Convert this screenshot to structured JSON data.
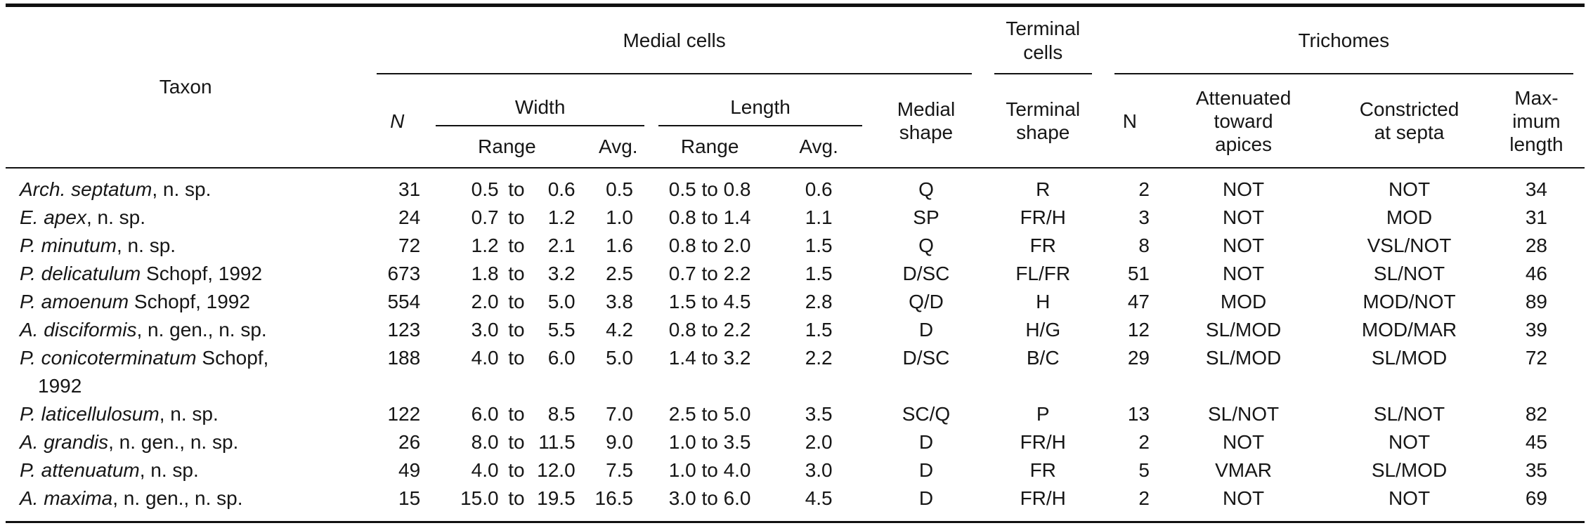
{
  "colors": {
    "background": "#ffffff",
    "text": "#161616",
    "rule": "#111111"
  },
  "table": {
    "header": {
      "taxon": "Taxon",
      "medial_cells": "Medial cells",
      "terminal_cells": "Terminal\ncells",
      "trichomes": "Trichomes",
      "n_medial": "N",
      "width": "Width",
      "length": "Length",
      "range_width": "Range",
      "avg_width": "Avg.",
      "range_length": "Range",
      "avg_length": "Avg.",
      "medial_shape": "Medial\nshape",
      "terminal_shape": "Terminal\nshape",
      "n_trichomes": "N",
      "attenuated": "Attenuated\ntoward\napices",
      "constricted": "Constricted\nat septa",
      "max_length": "Max-\nimum\nlength"
    },
    "rows": [
      {
        "taxon_italic": "Arch. septatum",
        "taxon_roman": ", n. sp.",
        "taxon_line2": "",
        "n_medial": "31",
        "w_min": "0.5",
        "w_to": "to",
        "w_max": "0.6",
        "w_avg": "0.5",
        "l_range": "0.5 to 0.8",
        "l_avg": "0.6",
        "medial_shape": "Q",
        "terminal_shape": "R",
        "n_trichomes": "2",
        "attenuated": "NOT",
        "constricted": "NOT",
        "max_length": "34"
      },
      {
        "taxon_italic": "E. apex",
        "taxon_roman": ", n. sp.",
        "taxon_line2": "",
        "n_medial": "24",
        "w_min": "0.7",
        "w_to": "to",
        "w_max": "1.2",
        "w_avg": "1.0",
        "l_range": "0.8 to 1.4",
        "l_avg": "1.1",
        "medial_shape": "SP",
        "terminal_shape": "FR/H",
        "n_trichomes": "3",
        "attenuated": "NOT",
        "constricted": "MOD",
        "max_length": "31"
      },
      {
        "taxon_italic": "P. minutum",
        "taxon_roman": ", n. sp.",
        "taxon_line2": "",
        "n_medial": "72",
        "w_min": "1.2",
        "w_to": "to",
        "w_max": "2.1",
        "w_avg": "1.6",
        "l_range": "0.8 to 2.0",
        "l_avg": "1.5",
        "medial_shape": "Q",
        "terminal_shape": "FR",
        "n_trichomes": "8",
        "attenuated": "NOT",
        "constricted": "VSL/NOT",
        "max_length": "28"
      },
      {
        "taxon_italic": "P. delicatulum",
        "taxon_roman": " Schopf, 1992",
        "taxon_line2": "",
        "n_medial": "673",
        "w_min": "1.8",
        "w_to": "to",
        "w_max": "3.2",
        "w_avg": "2.5",
        "l_range": "0.7 to 2.2",
        "l_avg": "1.5",
        "medial_shape": "D/SC",
        "terminal_shape": "FL/FR",
        "n_trichomes": "51",
        "attenuated": "NOT",
        "constricted": "SL/NOT",
        "max_length": "46"
      },
      {
        "taxon_italic": "P. amoenum",
        "taxon_roman": " Schopf, 1992",
        "taxon_line2": "",
        "n_medial": "554",
        "w_min": "2.0",
        "w_to": "to",
        "w_max": "5.0",
        "w_avg": "3.8",
        "l_range": "1.5 to 4.5",
        "l_avg": "2.8",
        "medial_shape": "Q/D",
        "terminal_shape": "H",
        "n_trichomes": "47",
        "attenuated": "MOD",
        "constricted": "MOD/NOT",
        "max_length": "89"
      },
      {
        "taxon_italic": "A. disciformis",
        "taxon_roman": ", n. gen., n. sp.",
        "taxon_line2": "",
        "n_medial": "123",
        "w_min": "3.0",
        "w_to": "to",
        "w_max": "5.5",
        "w_avg": "4.2",
        "l_range": "0.8 to 2.2",
        "l_avg": "1.5",
        "medial_shape": "D",
        "terminal_shape": "H/G",
        "n_trichomes": "12",
        "attenuated": "SL/MOD",
        "constricted": "MOD/MAR",
        "max_length": "39"
      },
      {
        "taxon_italic": "P. conicoterminatum",
        "taxon_roman": " Schopf,",
        "taxon_line2": "1992",
        "n_medial": "188",
        "w_min": "4.0",
        "w_to": "to",
        "w_max": "6.0",
        "w_avg": "5.0",
        "l_range": "1.4 to 3.2",
        "l_avg": "2.2",
        "medial_shape": "D/SC",
        "terminal_shape": "B/C",
        "n_trichomes": "29",
        "attenuated": "SL/MOD",
        "constricted": "SL/MOD",
        "max_length": "72"
      },
      {
        "taxon_italic": "P. laticellulosum",
        "taxon_roman": ", n. sp.",
        "taxon_line2": "",
        "n_medial": "122",
        "w_min": "6.0",
        "w_to": "to",
        "w_max": "8.5",
        "w_avg": "7.0",
        "l_range": "2.5 to 5.0",
        "l_avg": "3.5",
        "medial_shape": "SC/Q",
        "terminal_shape": "P",
        "n_trichomes": "13",
        "attenuated": "SL/NOT",
        "constricted": "SL/NOT",
        "max_length": "82"
      },
      {
        "taxon_italic": "A. grandis",
        "taxon_roman": ", n. gen., n. sp.",
        "taxon_line2": "",
        "n_medial": "26",
        "w_min": "8.0",
        "w_to": "to",
        "w_max": "11.5",
        "w_avg": "9.0",
        "l_range": "1.0 to 3.5",
        "l_avg": "2.0",
        "medial_shape": "D",
        "terminal_shape": "FR/H",
        "n_trichomes": "2",
        "attenuated": "NOT",
        "constricted": "NOT",
        "max_length": "45"
      },
      {
        "taxon_italic": "P. attenuatum",
        "taxon_roman": ", n. sp.",
        "taxon_line2": "",
        "n_medial": "49",
        "w_min": "4.0",
        "w_to": "to",
        "w_max": "12.0",
        "w_avg": "7.5",
        "l_range": "1.0 to 4.0",
        "l_avg": "3.0",
        "medial_shape": "D",
        "terminal_shape": "FR",
        "n_trichomes": "5",
        "attenuated": "VMAR",
        "constricted": "SL/MOD",
        "max_length": "35"
      },
      {
        "taxon_italic": "A. maxima",
        "taxon_roman": ", n. gen., n. sp.",
        "taxon_line2": "",
        "n_medial": "15",
        "w_min": "15.0",
        "w_to": "to",
        "w_max": "19.5",
        "w_avg": "16.5",
        "l_range": "3.0 to 6.0",
        "l_avg": "4.5",
        "medial_shape": "D",
        "terminal_shape": "FR/H",
        "n_trichomes": "2",
        "attenuated": "NOT",
        "constricted": "NOT",
        "max_length": "69"
      }
    ]
  }
}
